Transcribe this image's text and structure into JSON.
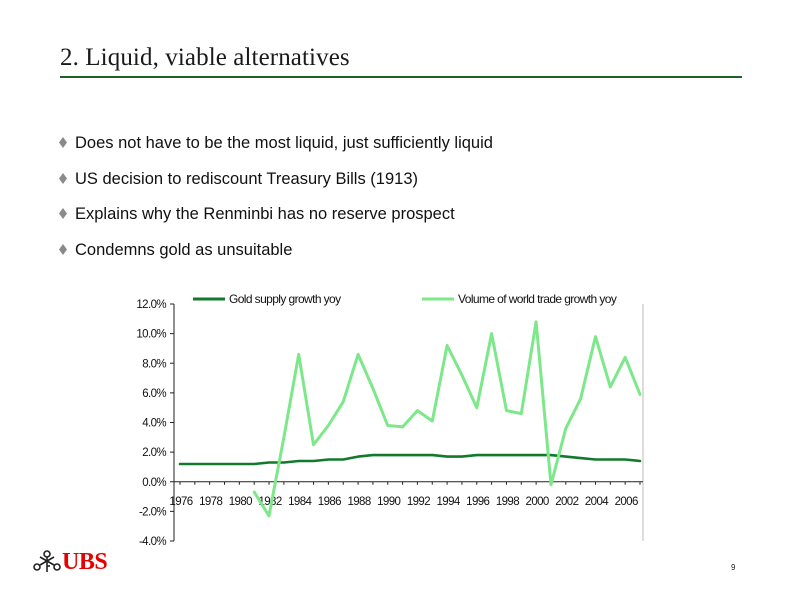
{
  "slide": {
    "title": "2. Liquid, viable alternatives",
    "accent_color": "#1f5f2a",
    "page_number": "9"
  },
  "bullets": [
    {
      "text": "Does not have to be the most liquid, just sufficiently liquid",
      "icon": "diamond-bullet-icon"
    },
    {
      "text": "US decision to rediscount Treasury Bills (1913)",
      "icon": "diamond-bullet-icon"
    },
    {
      "text": "Explains why the Renminbi has no reserve prospect",
      "icon": "diamond-bullet-icon"
    },
    {
      "text": "Condemns gold as unsuitable",
      "icon": "diamond-bullet-icon"
    }
  ],
  "branding": {
    "name": "UBS",
    "logo_icon": "ubs-keys-icon",
    "color": "#e60000"
  },
  "chart_data": {
    "type": "line",
    "title": "",
    "xlabel": "",
    "ylabel": "",
    "ylim": [
      -4,
      12
    ],
    "y_ticks": [
      12,
      10,
      8,
      6,
      4,
      2,
      0,
      -2,
      -4
    ],
    "y_tick_labels": [
      "12.0%",
      "10.0%",
      "8.0%",
      "6.0%",
      "4.0%",
      "2.0%",
      "0.0%",
      "-2.0%",
      "-4.0%"
    ],
    "x_tick_labels": [
      "1976",
      "1978",
      "1980",
      "1982",
      "1984",
      "1986",
      "1988",
      "1990",
      "1992",
      "1994",
      "1996",
      "1998",
      "2000",
      "2002",
      "2004",
      "2006"
    ],
    "legend_position": "top",
    "x": [
      1976,
      1977,
      1978,
      1979,
      1980,
      1981,
      1982,
      1983,
      1984,
      1985,
      1986,
      1987,
      1988,
      1989,
      1990,
      1991,
      1992,
      1993,
      1994,
      1995,
      1996,
      1997,
      1998,
      1999,
      2000,
      2001,
      2002,
      2003,
      2004,
      2005,
      2006,
      2007
    ],
    "series": [
      {
        "name": "Gold supply growth yoy",
        "color": "#137a2c",
        "values": [
          1.2,
          1.2,
          1.2,
          1.2,
          1.2,
          1.2,
          1.3,
          1.3,
          1.4,
          1.4,
          1.5,
          1.5,
          1.7,
          1.8,
          1.8,
          1.8,
          1.8,
          1.8,
          1.7,
          1.7,
          1.8,
          1.8,
          1.8,
          1.8,
          1.8,
          1.8,
          1.7,
          1.6,
          1.5,
          1.5,
          1.5,
          1.4
        ]
      },
      {
        "name": "Volume of world trade growth yoy",
        "color": "#7de88a",
        "values": [
          null,
          null,
          null,
          null,
          null,
          -0.7,
          -2.3,
          3.0,
          8.6,
          2.5,
          3.8,
          5.4,
          8.6,
          6.3,
          3.8,
          3.7,
          4.8,
          4.1,
          9.2,
          7.2,
          5.0,
          10.0,
          4.8,
          4.6,
          10.8,
          -0.2,
          3.6,
          5.6,
          9.8,
          6.4,
          8.4,
          5.9
        ]
      }
    ]
  }
}
